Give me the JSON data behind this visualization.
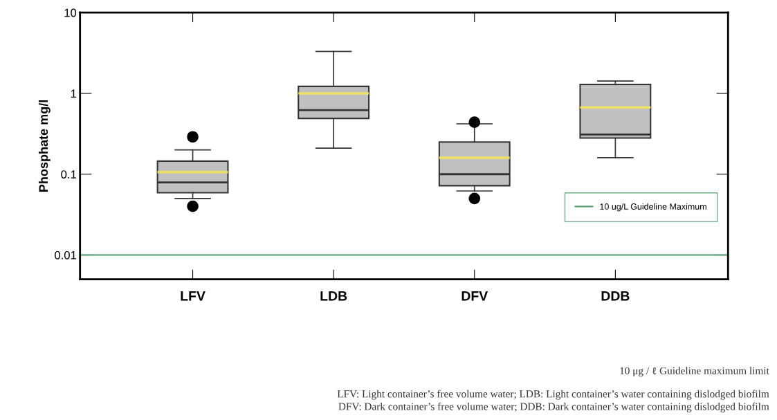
{
  "chart_data": {
    "type": "box",
    "ylabel": "Phosphate mg/l",
    "categories": [
      "LFV",
      "LDB",
      "DFV",
      "DDB"
    ],
    "boxes": [
      {
        "low": 0.05,
        "q1": 0.059,
        "median": 0.079,
        "q3": 0.145,
        "high": 0.2,
        "mean": 0.106,
        "outliers": [
          0.29,
          0.04
        ]
      },
      {
        "low": 0.21,
        "q1": 0.49,
        "median": 0.62,
        "q3": 1.22,
        "high": 3.3,
        "mean": 1.0
      },
      {
        "low": 0.062,
        "q1": 0.072,
        "median": 0.1,
        "q3": 0.25,
        "high": 0.42,
        "mean": 0.16,
        "outliers": [
          0.44,
          0.05
        ]
      },
      {
        "low": 0.16,
        "q1": 0.28,
        "median": 0.31,
        "q3": 1.29,
        "high": 1.42,
        "mean": 0.67
      }
    ],
    "color": "#c0c0c0",
    "log": true,
    "ylim": [
      0.005,
      10
    ],
    "yticks": [
      0.01,
      0.1,
      1,
      10
    ],
    "ref_lines": [
      {
        "axis": "y",
        "value": 0.01,
        "label": "10 ug/L Guideline Maximum",
        "color": "#4c9a6a"
      }
    ],
    "legend": "right",
    "grid": false,
    "annotations": [
      "10 μg / ℓ Guideline maximum limit",
      "LFV: Light container’s free volume water; LDB: Light container’s water containing dislodged biofilm",
      "DFV: Dark container’s free volume water; DDB: Dark container’s water containing dislodged biofilm"
    ]
  }
}
